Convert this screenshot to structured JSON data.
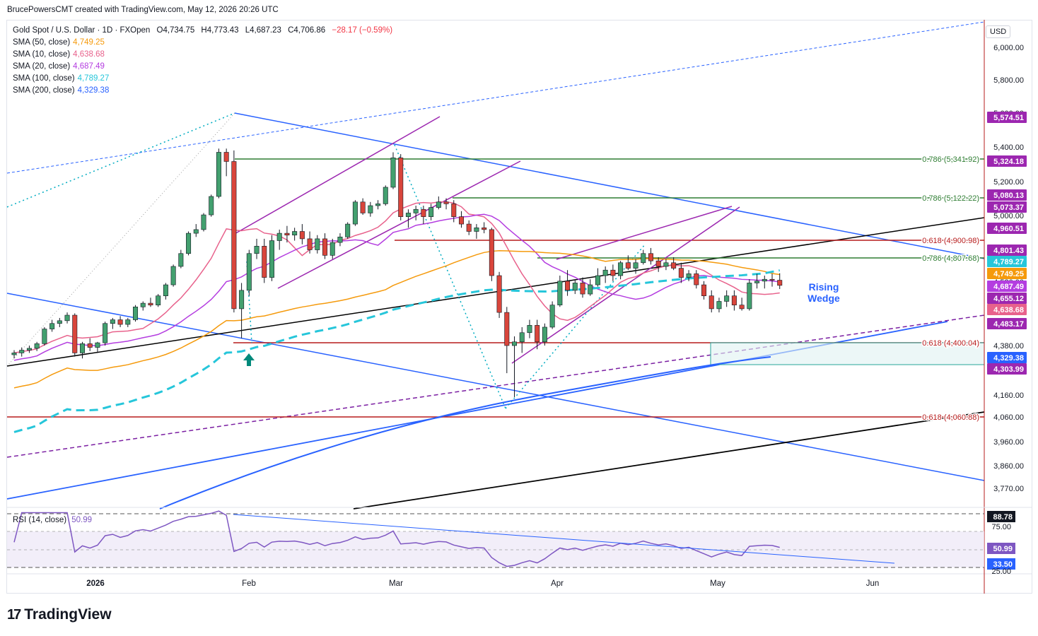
{
  "header": {
    "author_line": "BrucePowersCMT created with TradingView.com, May 12, 2026 20:26 UTC"
  },
  "symbol": {
    "title": "Gold Spot / U.S. Dollar · 1D · FXOpen",
    "open": "O4,734.75",
    "high": "H4,773.43",
    "low": "L4,687.23",
    "close": "C4,706.86",
    "change": "−28.17 (−0.59%)"
  },
  "currency": "USD",
  "indicators": [
    {
      "label": "SMA (50, close)",
      "value": "4,749.25",
      "color": "#f59a0c"
    },
    {
      "label": "SMA (10, close)",
      "value": "4,638.68",
      "color": "#e8628c"
    },
    {
      "label": "SMA (20, close)",
      "value": "4,687.49",
      "color": "#b43de0"
    },
    {
      "label": "SMA (100, close)",
      "value": "4,789.27",
      "color": "#26c6da"
    },
    {
      "label": "SMA (200, close)",
      "value": "4,329.38",
      "color": "#2962ff"
    }
  ],
  "rsi": {
    "label": "RSI (14, close)",
    "value": "50.99"
  },
  "annotation": "Rising\nWedge",
  "brand": "TradingView",
  "chart_data": {
    "type": "candlestick",
    "yaxis_ticks": [
      "6,000.00",
      "5,800.00",
      "5,600.00",
      "5,400.00",
      "5,200.00",
      "5,000.00",
      "4,800.00",
      "4,580.00",
      "4,380.00",
      "4,160.00",
      "4,060.00",
      "3,960.00",
      "3,860.00",
      "3,770.00"
    ],
    "xaxis_ticks": [
      "2026",
      "Feb",
      "Mar",
      "Apr",
      "May",
      "Jun"
    ],
    "price_labels": [
      {
        "text": "5,574.51",
        "color": "#9c27b0"
      },
      {
        "text": "5,324.18",
        "color": "#9c27b0"
      },
      {
        "text": "5,080.13",
        "color": "#9c27b0"
      },
      {
        "text": "5,073.37",
        "color": "#9c27b0"
      },
      {
        "text": "4,960.51",
        "color": "#9c27b0"
      },
      {
        "text": "4,801.43",
        "color": "#9c27b0"
      },
      {
        "text": "4,789.27",
        "color": "#26c6da"
      },
      {
        "text": "4,749.25",
        "color": "#f59a0c"
      },
      {
        "text": "4,687.49",
        "color": "#b43de0"
      },
      {
        "text": "4,655.12",
        "color": "#9c27b0"
      },
      {
        "text": "4,638.68",
        "color": "#e8628c"
      },
      {
        "text": "4,483.17",
        "color": "#9c27b0"
      },
      {
        "text": "4,329.38",
        "color": "#2962ff"
      },
      {
        "text": "4,303.99",
        "color": "#9c27b0"
      }
    ],
    "fib_levels": [
      {
        "text": "0.786 (5,341.92)",
        "color": "#2e7d32"
      },
      {
        "text": "0.786 (5,122.22)",
        "color": "#2e7d32"
      },
      {
        "text": "0.618 (4,900.98)",
        "color": "#b71c1c"
      },
      {
        "text": "0.786 (4,807.68)",
        "color": "#2e7d32"
      },
      {
        "text": "0.618 (4,400.04)",
        "color": "#b71c1c"
      },
      {
        "text": "0.618 (4,060.88)",
        "color": "#b71c1c"
      }
    ],
    "rsi_ticks": [
      "88.78",
      "75.00",
      "50.99",
      "33.50",
      "25.00"
    ],
    "candles": [
      [
        4330,
        4355,
        4310,
        4340
      ],
      [
        4340,
        4370,
        4320,
        4355
      ],
      [
        4355,
        4380,
        4340,
        4365
      ],
      [
        4365,
        4400,
        4350,
        4390
      ],
      [
        4390,
        4480,
        4380,
        4470
      ],
      [
        4470,
        4520,
        4455,
        4500
      ],
      [
        4500,
        4530,
        4480,
        4515
      ],
      [
        4515,
        4560,
        4500,
        4545
      ],
      [
        4545,
        4555,
        4320,
        4340
      ],
      [
        4340,
        4400,
        4310,
        4390
      ],
      [
        4390,
        4420,
        4350,
        4370
      ],
      [
        4370,
        4400,
        4340,
        4395
      ],
      [
        4395,
        4510,
        4380,
        4500
      ],
      [
        4500,
        4530,
        4470,
        4520
      ],
      [
        4520,
        4540,
        4480,
        4495
      ],
      [
        4495,
        4530,
        4480,
        4520
      ],
      [
        4520,
        4600,
        4510,
        4590
      ],
      [
        4590,
        4620,
        4570,
        4610
      ],
      [
        4610,
        4640,
        4590,
        4600
      ],
      [
        4600,
        4660,
        4590,
        4650
      ],
      [
        4650,
        4720,
        4630,
        4710
      ],
      [
        4710,
        4820,
        4700,
        4810
      ],
      [
        4810,
        4900,
        4800,
        4880
      ],
      [
        4880,
        5000,
        4870,
        4990
      ],
      [
        4990,
        5040,
        4970,
        5010
      ],
      [
        5010,
        5100,
        5000,
        5090
      ],
      [
        5090,
        5200,
        5080,
        5190
      ],
      [
        5190,
        5450,
        5180,
        5430
      ],
      [
        5430,
        5450,
        5300,
        5380
      ],
      [
        5380,
        5440,
        4560,
        4580
      ],
      [
        4580,
        4720,
        4420,
        4680
      ],
      [
        4680,
        4900,
        4650,
        4880
      ],
      [
        4880,
        4960,
        4850,
        4920
      ],
      [
        4920,
        4960,
        4720,
        4750
      ],
      [
        4750,
        4980,
        4730,
        4950
      ],
      [
        4950,
        5010,
        4900,
        4990
      ],
      [
        4990,
        5030,
        4940,
        4980
      ],
      [
        4980,
        5020,
        4950,
        5000
      ],
      [
        5000,
        5040,
        4930,
        4960
      ],
      [
        4960,
        5000,
        4880,
        4900
      ],
      [
        4900,
        4980,
        4880,
        4960
      ],
      [
        4960,
        4990,
        4850,
        4870
      ],
      [
        4870,
        4960,
        4850,
        4940
      ],
      [
        4940,
        4990,
        4920,
        4970
      ],
      [
        4970,
        5050,
        4960,
        5040
      ],
      [
        5040,
        5170,
        5030,
        5160
      ],
      [
        5160,
        5180,
        5090,
        5100
      ],
      [
        5100,
        5160,
        5080,
        5140
      ],
      [
        5140,
        5170,
        5120,
        5150
      ],
      [
        5150,
        5250,
        5140,
        5240
      ],
      [
        5240,
        5430,
        5230,
        5400
      ],
      [
        5400,
        5420,
        5060,
        5080
      ],
      [
        5080,
        5120,
        5020,
        5100
      ],
      [
        5100,
        5140,
        5060,
        5120
      ],
      [
        5120,
        5140,
        5040,
        5080
      ],
      [
        5080,
        5150,
        5060,
        5130
      ],
      [
        5130,
        5190,
        5120,
        5160
      ],
      [
        5160,
        5180,
        5120,
        5150
      ],
      [
        5150,
        5170,
        5050,
        5080
      ],
      [
        5080,
        5110,
        5020,
        5040
      ],
      [
        5040,
        5060,
        4980,
        5000
      ],
      [
        5000,
        5040,
        4960,
        5020
      ],
      [
        5020,
        5050,
        4990,
        5010
      ],
      [
        5010,
        5020,
        4730,
        4760
      ],
      [
        4760,
        4780,
        4530,
        4560
      ],
      [
        4560,
        4590,
        4230,
        4380
      ],
      [
        4380,
        4430,
        4100,
        4400
      ],
      [
        4400,
        4480,
        4340,
        4450
      ],
      [
        4450,
        4520,
        4420,
        4490
      ],
      [
        4490,
        4520,
        4360,
        4400
      ],
      [
        4400,
        4500,
        4380,
        4480
      ],
      [
        4480,
        4620,
        4470,
        4600
      ],
      [
        4600,
        4760,
        4590,
        4730
      ],
      [
        4730,
        4790,
        4650,
        4680
      ],
      [
        4680,
        4740,
        4660,
        4720
      ],
      [
        4720,
        4750,
        4640,
        4660
      ],
      [
        4660,
        4740,
        4650,
        4710
      ],
      [
        4710,
        4800,
        4700,
        4760
      ],
      [
        4760,
        4810,
        4720,
        4790
      ],
      [
        4790,
        4820,
        4730,
        4760
      ],
      [
        4760,
        4840,
        4740,
        4830
      ],
      [
        4830,
        4870,
        4790,
        4800
      ],
      [
        4800,
        4850,
        4770,
        4830
      ],
      [
        4830,
        4900,
        4820,
        4880
      ],
      [
        4880,
        4910,
        4820,
        4840
      ],
      [
        4840,
        4860,
        4780,
        4810
      ],
      [
        4810,
        4850,
        4790,
        4830
      ],
      [
        4830,
        4860,
        4790,
        4800
      ],
      [
        4800,
        4830,
        4720,
        4750
      ],
      [
        4750,
        4790,
        4730,
        4770
      ],
      [
        4770,
        4790,
        4690,
        4710
      ],
      [
        4710,
        4730,
        4630,
        4650
      ],
      [
        4650,
        4680,
        4560,
        4580
      ],
      [
        4580,
        4640,
        4560,
        4620
      ],
      [
        4620,
        4680,
        4590,
        4650
      ],
      [
        4650,
        4680,
        4570,
        4600
      ],
      [
        4600,
        4640,
        4570,
        4580
      ],
      [
        4580,
        4740,
        4570,
        4720
      ],
      [
        4720,
        4770,
        4690,
        4730
      ],
      [
        4730,
        4760,
        4690,
        4740
      ],
      [
        4740,
        4770,
        4700,
        4735
      ],
      [
        4735,
        4773,
        4687,
        4707
      ]
    ]
  }
}
